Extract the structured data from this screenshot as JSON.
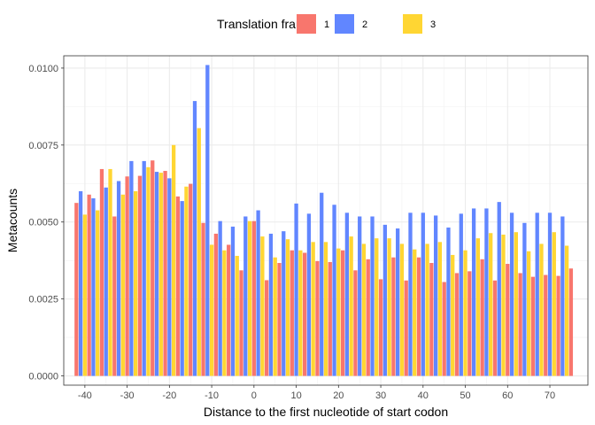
{
  "chart_data": {
    "type": "bar",
    "title": "",
    "xlabel": "Distance to the first nucleotide of start codon",
    "ylabel": "Metacounts",
    "xlim": [
      -45,
      79
    ],
    "ylim": [
      -0.0003,
      0.0104
    ],
    "x_ticks": [
      -40,
      -30,
      -20,
      -10,
      0,
      10,
      20,
      30,
      40,
      50,
      60,
      70
    ],
    "x_tick_labels": [
      "-40",
      "-30",
      "-20",
      "-10",
      "0",
      "10",
      "20",
      "30",
      "40",
      "50",
      "60",
      "70"
    ],
    "y_ticks": [
      0,
      0.0025,
      0.005,
      0.0075,
      0.01
    ],
    "y_tick_labels": [
      "0.0000",
      "0.0025",
      "0.0050",
      "0.0075",
      "0.0100"
    ],
    "grid": true,
    "legend": {
      "title": "Translation frame",
      "placement": "top"
    },
    "series": [
      {
        "name": "1",
        "color": "#F8766D",
        "x_start": -42,
        "x_step": 3,
        "values": [
          0.00562,
          0.00589,
          0.00672,
          0.00518,
          0.00648,
          0.0065,
          0.007,
          0.00666,
          0.00583,
          0.00624,
          0.00497,
          0.00462,
          0.00426,
          0.00343,
          0.00503,
          0.00311,
          0.00367,
          0.00408,
          0.004,
          0.00373,
          0.0037,
          0.00408,
          0.00343,
          0.00379,
          0.00314,
          0.00385,
          0.0031,
          0.00385,
          0.00367,
          0.00305,
          0.00334,
          0.0034,
          0.00379,
          0.0031,
          0.00364,
          0.00334,
          0.00322,
          0.00328,
          0.00325,
          0.00349
        ]
      },
      {
        "name": "2",
        "color": "#6186FF",
        "x_start": -41,
        "x_step": 3,
        "values": [
          0.006,
          0.00577,
          0.00612,
          0.00633,
          0.00698,
          0.00698,
          0.00663,
          0.00642,
          0.00568,
          0.00893,
          0.0101,
          0.00503,
          0.00485,
          0.00518,
          0.00538,
          0.00462,
          0.0047,
          0.0056,
          0.00527,
          0.00595,
          0.00556,
          0.0053,
          0.00518,
          0.00518,
          0.00491,
          0.00479,
          0.0053,
          0.0053,
          0.00521,
          0.00482,
          0.00527,
          0.00544,
          0.00544,
          0.00565,
          0.0053,
          0.00497,
          0.0053,
          0.0053,
          0.00518
        ]
      },
      {
        "name": "3",
        "color": "#FFD633",
        "x_start": -40,
        "x_step": 3,
        "values": [
          0.00524,
          0.00538,
          0.00672,
          0.00589,
          0.006,
          0.00678,
          0.0066,
          0.0075,
          0.00615,
          0.00805,
          0.00426,
          0.00408,
          0.0039,
          0.00503,
          0.00453,
          0.00385,
          0.00444,
          0.00408,
          0.00435,
          0.00435,
          0.00414,
          0.00453,
          0.00429,
          0.00447,
          0.00447,
          0.00429,
          0.00411,
          0.00429,
          0.00435,
          0.00393,
          0.00408,
          0.00447,
          0.00464,
          0.00459,
          0.00467,
          0.00405,
          0.00429,
          0.00467,
          0.00423
        ]
      }
    ]
  }
}
